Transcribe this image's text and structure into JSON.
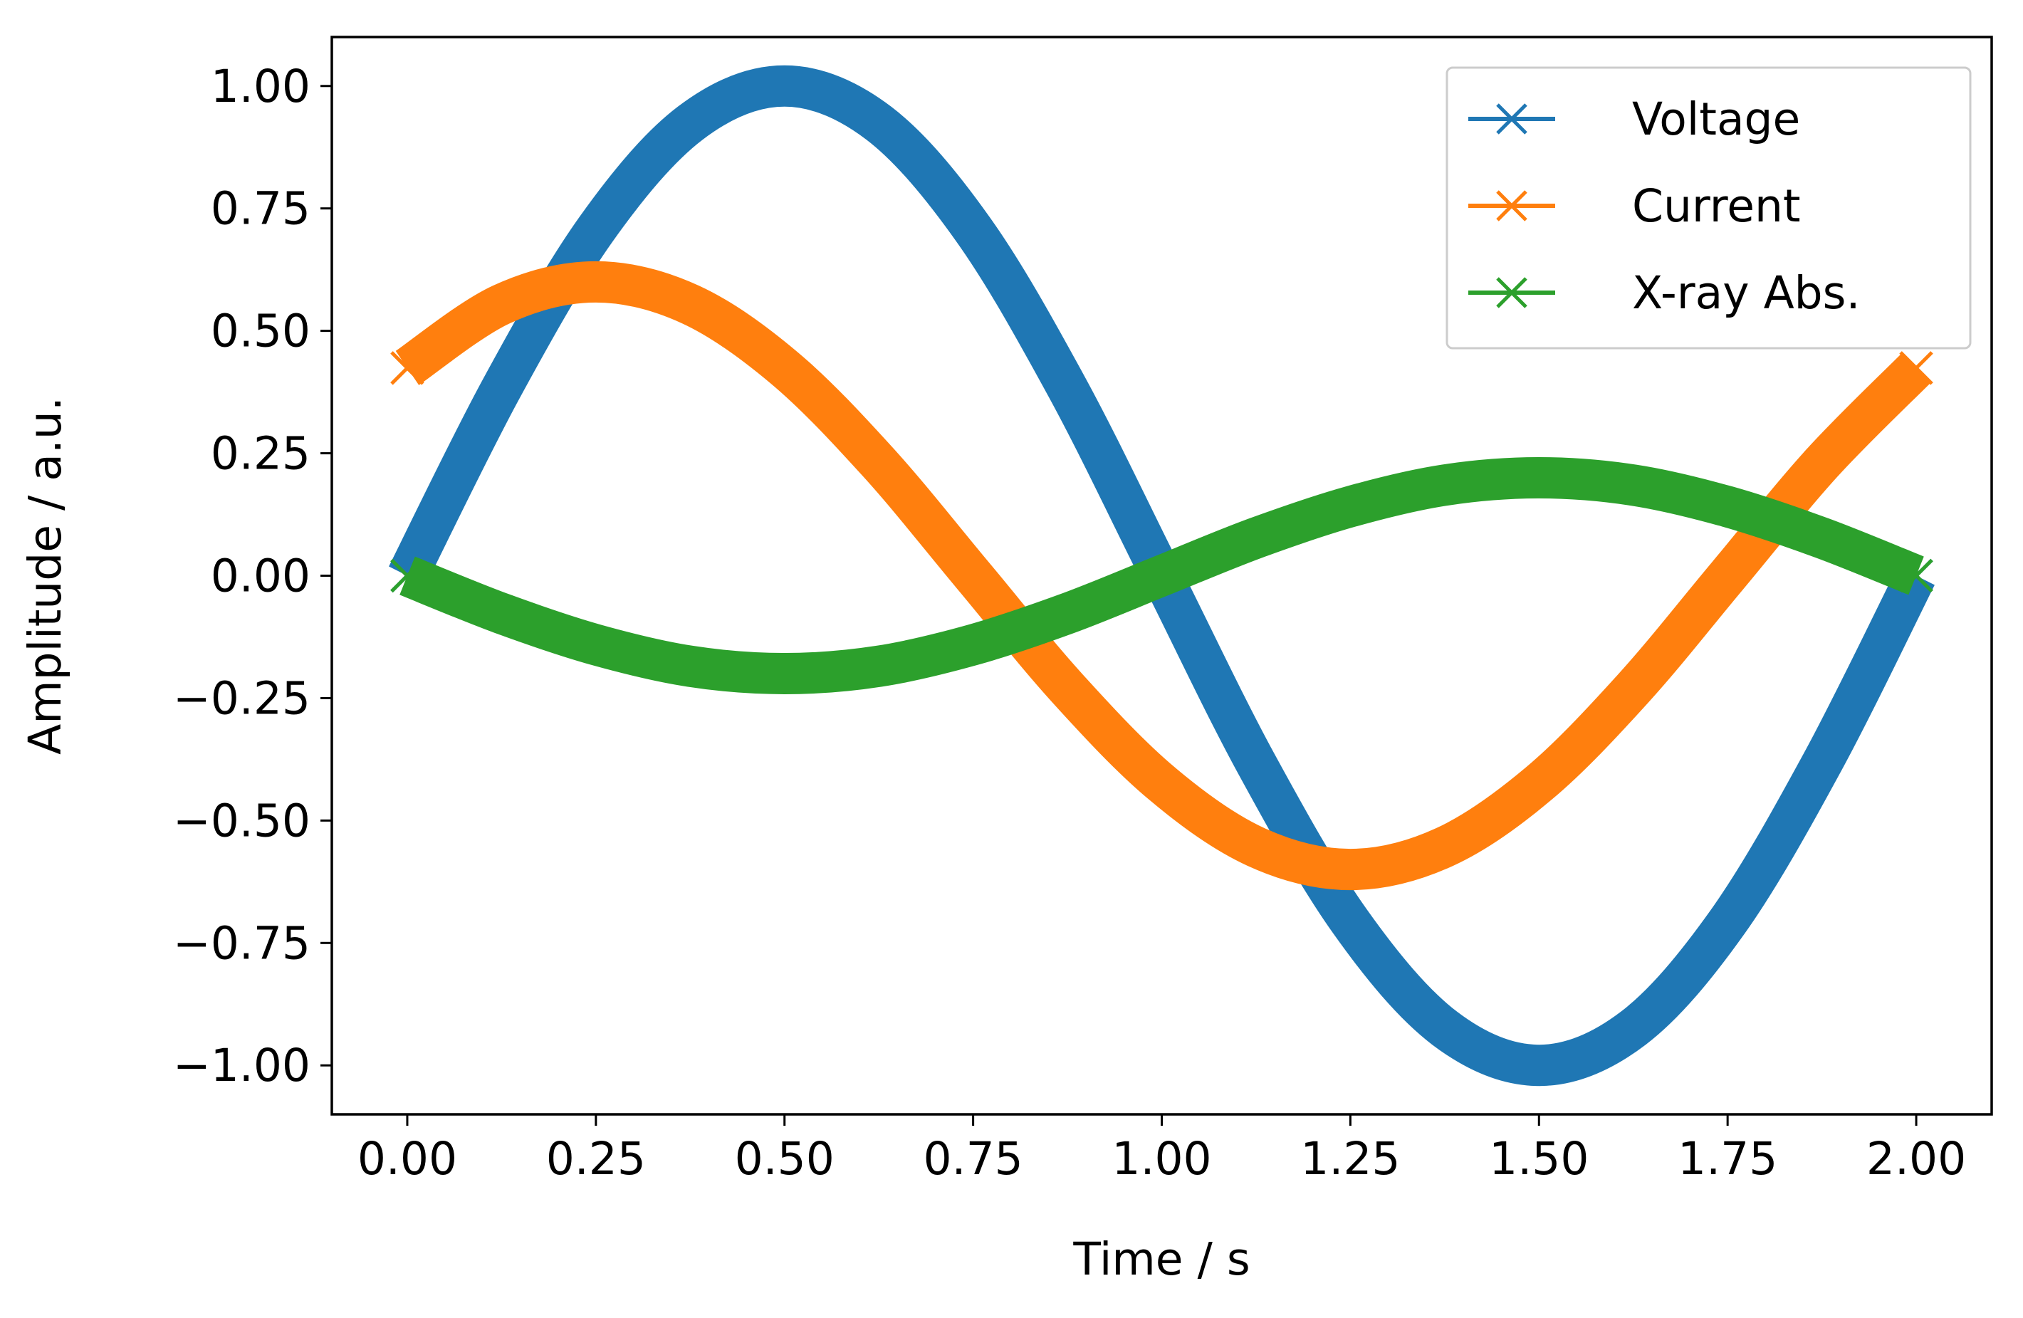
{
  "chart_data": {
    "type": "line",
    "title": "",
    "xlabel": "Time / s",
    "ylabel": "Amplitude / a.u.",
    "xlim": [
      -0.1,
      2.1
    ],
    "ylim": [
      -1.1,
      1.1
    ],
    "xticks": [
      0.0,
      0.25,
      0.5,
      0.75,
      1.0,
      1.25,
      1.5,
      1.75,
      2.0
    ],
    "xtick_labels": [
      "0.00",
      "0.25",
      "0.50",
      "0.75",
      "1.00",
      "1.25",
      "1.50",
      "1.75",
      "2.00"
    ],
    "yticks": [
      1.0,
      0.75,
      0.5,
      0.25,
      0.0,
      -0.25,
      -0.5,
      -0.75,
      -1.0
    ],
    "ytick_labels": [
      "1.00",
      "0.75",
      "0.50",
      "0.25",
      "0.00",
      "−0.25",
      "−0.50",
      "−0.75",
      "−1.00"
    ],
    "grid": false,
    "legend_position": "top-right",
    "marker": "x",
    "series": [
      {
        "name": "Voltage",
        "color": "#1f77b4",
        "x": [
          0.0,
          0.125,
          0.25,
          0.375,
          0.5,
          0.625,
          0.75,
          0.875,
          1.0,
          1.125,
          1.25,
          1.375,
          1.5,
          1.625,
          1.75,
          1.875,
          2.0
        ],
        "y": [
          0.0,
          0.383,
          0.707,
          0.924,
          1.0,
          0.924,
          0.707,
          0.383,
          0.0,
          -0.383,
          -0.707,
          -0.924,
          -1.0,
          -0.924,
          -0.707,
          -0.383,
          0.0
        ]
      },
      {
        "name": "Current",
        "color": "#ff7f0e",
        "x": [
          0.0,
          0.125,
          0.25,
          0.375,
          0.5,
          0.625,
          0.75,
          0.875,
          1.0,
          1.125,
          1.25,
          1.375,
          1.5,
          1.625,
          1.75,
          1.875,
          2.0
        ],
        "y": [
          0.424,
          0.554,
          0.6,
          0.554,
          0.424,
          0.23,
          0.0,
          -0.23,
          -0.424,
          -0.554,
          -0.6,
          -0.554,
          -0.424,
          -0.23,
          0.0,
          0.23,
          0.424
        ]
      },
      {
        "name": "X-ray Abs.",
        "color": "#2ca02c",
        "x": [
          0.0,
          0.125,
          0.25,
          0.375,
          0.5,
          0.625,
          0.75,
          0.875,
          1.0,
          1.125,
          1.25,
          1.375,
          1.5,
          1.625,
          1.75,
          1.875,
          2.0
        ],
        "y": [
          0.0,
          -0.077,
          -0.141,
          -0.185,
          -0.2,
          -0.185,
          -0.141,
          -0.077,
          0.0,
          0.077,
          0.141,
          0.185,
          0.2,
          0.185,
          0.141,
          0.077,
          0.0
        ]
      }
    ]
  }
}
